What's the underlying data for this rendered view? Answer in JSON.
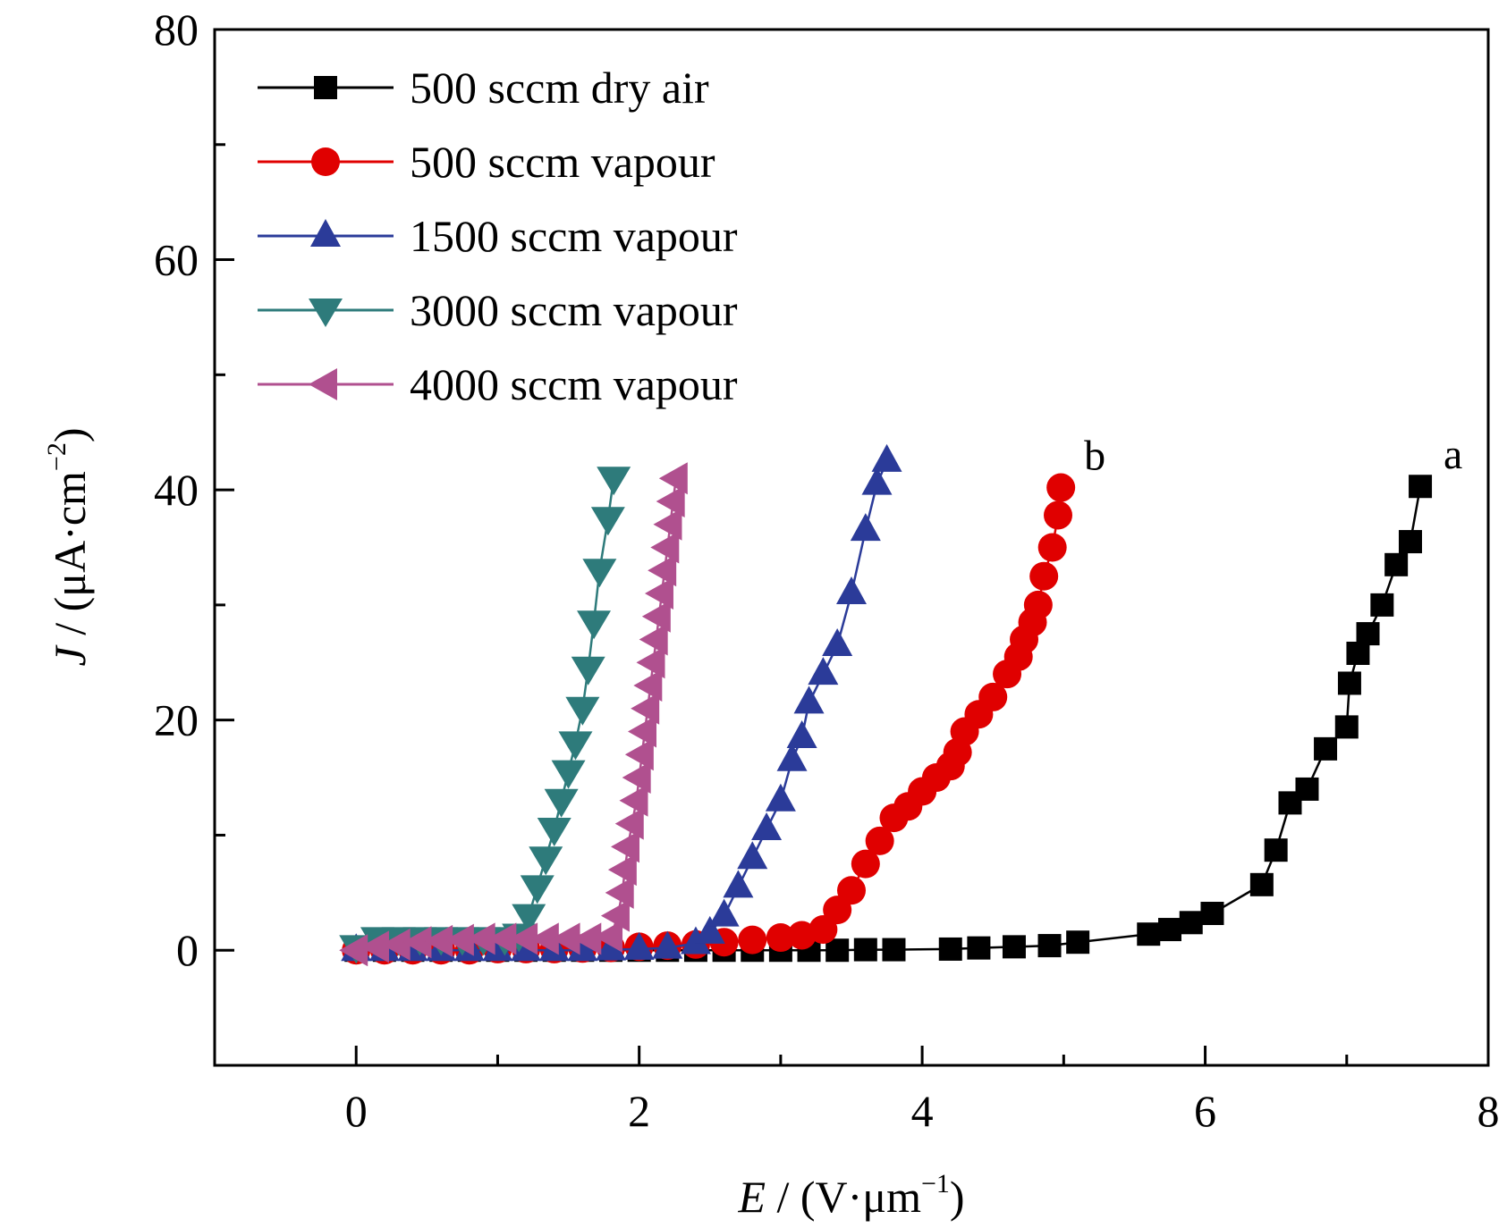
{
  "chart_data": {
    "type": "line",
    "xlabel_var": "E",
    "xlabel_unit": " / (V·μm",
    "xlabel_exp": "−1",
    "xlabel_close": ")",
    "ylabel_var": "J",
    "ylabel_unit": " / (μA·cm",
    "ylabel_exp": "−2",
    "ylabel_close": ")",
    "xlim": [
      -1,
      8
    ],
    "ylim": [
      -10,
      80
    ],
    "x_ticks": [
      0,
      2,
      4,
      6,
      8
    ],
    "y_ticks": [
      0,
      20,
      40,
      60,
      80
    ],
    "legend_position": "top-left",
    "grid": false,
    "series": [
      {
        "name": "500 sccm dry air",
        "marker": "square",
        "color": "#000000",
        "end_label": "a",
        "points": [
          [
            0.0,
            0.0
          ],
          [
            0.2,
            0.0
          ],
          [
            0.4,
            0.0
          ],
          [
            0.6,
            0.0
          ],
          [
            0.8,
            0.0
          ],
          [
            1.0,
            0.0
          ],
          [
            1.2,
            0.0
          ],
          [
            1.4,
            0.0
          ],
          [
            1.6,
            0.0
          ],
          [
            1.8,
            0.0
          ],
          [
            2.0,
            0.0
          ],
          [
            2.2,
            0.0
          ],
          [
            2.4,
            0.0
          ],
          [
            2.6,
            0.0
          ],
          [
            2.8,
            0.0
          ],
          [
            3.0,
            0.0
          ],
          [
            3.2,
            0.0
          ],
          [
            3.4,
            0.0
          ],
          [
            3.6,
            0.05
          ],
          [
            3.8,
            0.05
          ],
          [
            4.2,
            0.1
          ],
          [
            4.4,
            0.2
          ],
          [
            4.65,
            0.3
          ],
          [
            4.9,
            0.4
          ],
          [
            5.1,
            0.7
          ],
          [
            5.6,
            1.4
          ],
          [
            5.75,
            1.8
          ],
          [
            5.9,
            2.4
          ],
          [
            6.05,
            3.2
          ],
          [
            6.4,
            5.7
          ],
          [
            6.5,
            8.7
          ],
          [
            6.6,
            12.8
          ],
          [
            6.72,
            14.0
          ],
          [
            6.85,
            17.5
          ],
          [
            7.0,
            19.4
          ],
          [
            7.02,
            23.2
          ],
          [
            7.08,
            25.8
          ],
          [
            7.15,
            27.5
          ],
          [
            7.25,
            30.0
          ],
          [
            7.35,
            33.5
          ],
          [
            7.45,
            35.5
          ],
          [
            7.52,
            40.3
          ]
        ]
      },
      {
        "name": "500 sccm vapour",
        "marker": "circle",
        "color": "#e00000",
        "end_label": "b",
        "points": [
          [
            0.0,
            0.0
          ],
          [
            0.2,
            0.0
          ],
          [
            0.4,
            0.0
          ],
          [
            0.6,
            0.0
          ],
          [
            0.8,
            0.0
          ],
          [
            1.0,
            0.1
          ],
          [
            1.2,
            0.1
          ],
          [
            1.4,
            0.1
          ],
          [
            1.6,
            0.15
          ],
          [
            1.8,
            0.2
          ],
          [
            2.0,
            0.3
          ],
          [
            2.2,
            0.4
          ],
          [
            2.4,
            0.5
          ],
          [
            2.6,
            0.7
          ],
          [
            2.8,
            0.9
          ],
          [
            3.0,
            1.1
          ],
          [
            3.15,
            1.3
          ],
          [
            3.3,
            1.8
          ],
          [
            3.4,
            3.5
          ],
          [
            3.5,
            5.2
          ],
          [
            3.6,
            7.5
          ],
          [
            3.7,
            9.5
          ],
          [
            3.8,
            11.5
          ],
          [
            3.9,
            12.5
          ],
          [
            4.0,
            13.8
          ],
          [
            4.1,
            15.0
          ],
          [
            4.2,
            16.0
          ],
          [
            4.25,
            17.2
          ],
          [
            4.3,
            19.0
          ],
          [
            4.4,
            20.5
          ],
          [
            4.5,
            22.0
          ],
          [
            4.6,
            24.0
          ],
          [
            4.68,
            25.5
          ],
          [
            4.72,
            27.0
          ],
          [
            4.78,
            28.5
          ],
          [
            4.82,
            30.0
          ],
          [
            4.86,
            32.5
          ],
          [
            4.92,
            35.0
          ],
          [
            4.96,
            37.8
          ],
          [
            4.98,
            40.2
          ]
        ]
      },
      {
        "name": "1500 sccm vapour",
        "marker": "triangle-up",
        "color": "#2b3b99",
        "points": [
          [
            0.0,
            0.0
          ],
          [
            0.2,
            0.0
          ],
          [
            0.4,
            0.0
          ],
          [
            0.6,
            0.0
          ],
          [
            0.8,
            0.0
          ],
          [
            1.0,
            0.0
          ],
          [
            1.2,
            0.0
          ],
          [
            1.4,
            0.0
          ],
          [
            1.6,
            0.0
          ],
          [
            1.8,
            0.05
          ],
          [
            2.0,
            0.1
          ],
          [
            2.2,
            0.2
          ],
          [
            2.4,
            0.6
          ],
          [
            2.5,
            1.5
          ],
          [
            2.6,
            3.0
          ],
          [
            2.7,
            5.5
          ],
          [
            2.8,
            8.0
          ],
          [
            2.9,
            10.5
          ],
          [
            3.0,
            13.0
          ],
          [
            3.08,
            16.5
          ],
          [
            3.15,
            18.5
          ],
          [
            3.2,
            21.5
          ],
          [
            3.3,
            24.0
          ],
          [
            3.4,
            26.5
          ],
          [
            3.5,
            31.0
          ],
          [
            3.6,
            36.5
          ],
          [
            3.68,
            40.5
          ],
          [
            3.75,
            42.5
          ]
        ]
      },
      {
        "name": "3000 sccm vapour",
        "marker": "triangle-down",
        "color": "#2e7b7b",
        "points": [
          [
            0.0,
            0.3
          ],
          [
            0.15,
            1.0
          ],
          [
            0.3,
            1.0
          ],
          [
            0.45,
            1.0
          ],
          [
            0.6,
            1.0
          ],
          [
            0.75,
            1.0
          ],
          [
            0.9,
            1.0
          ],
          [
            1.05,
            1.0
          ],
          [
            1.15,
            1.3
          ],
          [
            1.22,
            3.0
          ],
          [
            1.28,
            5.5
          ],
          [
            1.34,
            8.0
          ],
          [
            1.4,
            10.5
          ],
          [
            1.45,
            13.0
          ],
          [
            1.5,
            15.5
          ],
          [
            1.55,
            18.0
          ],
          [
            1.6,
            21.0
          ],
          [
            1.64,
            24.5
          ],
          [
            1.68,
            28.5
          ],
          [
            1.72,
            33.0
          ],
          [
            1.78,
            37.5
          ],
          [
            1.82,
            41.0
          ]
        ]
      },
      {
        "name": "4000 sccm vapour",
        "marker": "triangle-left",
        "color": "#b0508f",
        "points": [
          [
            0.0,
            0.0
          ],
          [
            0.15,
            0.3
          ],
          [
            0.3,
            0.5
          ],
          [
            0.45,
            0.7
          ],
          [
            0.6,
            0.8
          ],
          [
            0.75,
            0.9
          ],
          [
            0.9,
            1.0
          ],
          [
            1.05,
            1.0
          ],
          [
            1.2,
            1.0
          ],
          [
            1.35,
            1.0
          ],
          [
            1.5,
            1.0
          ],
          [
            1.65,
            1.0
          ],
          [
            1.8,
            1.2
          ],
          [
            1.85,
            3.0
          ],
          [
            1.88,
            5.0
          ],
          [
            1.9,
            7.0
          ],
          [
            1.92,
            9.0
          ],
          [
            1.95,
            11.0
          ],
          [
            1.98,
            13.0
          ],
          [
            2.0,
            15.0
          ],
          [
            2.02,
            17.0
          ],
          [
            2.04,
            19.0
          ],
          [
            2.06,
            21.0
          ],
          [
            2.08,
            23.0
          ],
          [
            2.1,
            25.0
          ],
          [
            2.12,
            27.0
          ],
          [
            2.14,
            29.0
          ],
          [
            2.16,
            31.0
          ],
          [
            2.18,
            33.0
          ],
          [
            2.2,
            35.0
          ],
          [
            2.22,
            37.0
          ],
          [
            2.24,
            39.0
          ],
          [
            2.26,
            41.0
          ]
        ]
      }
    ]
  }
}
